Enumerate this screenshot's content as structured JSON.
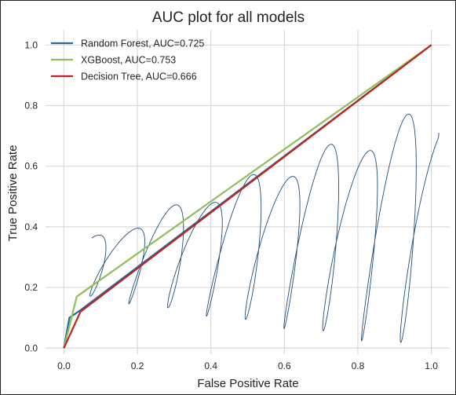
{
  "chart_data": {
    "type": "line",
    "title": "AUC plot for all models",
    "xlabel": "False Positive Rate",
    "ylabel": "True Positive Rate",
    "xlim": [
      -0.05,
      1.05
    ],
    "ylim": [
      -0.02,
      1.05
    ],
    "xticks": [
      0.0,
      0.2,
      0.4,
      0.6,
      0.8,
      1.0
    ],
    "yticks": [
      0.0,
      0.2,
      0.4,
      0.6,
      0.8,
      1.0
    ],
    "xtick_labels": [
      "0.0",
      "0.2",
      "0.4",
      "0.6",
      "0.8",
      "1.0"
    ],
    "ytick_labels": [
      "0.0",
      "0.2",
      "0.4",
      "0.6",
      "0.8",
      "1.0"
    ],
    "grid": true,
    "legend_position": "top-left",
    "series": [
      {
        "name": "Random Forest, AUC=0.725",
        "color": "#1f6aa5",
        "x": [
          0.0,
          0.015,
          0.045,
          1.0
        ],
        "y": [
          0.0,
          0.1,
          0.125,
          1.0
        ]
      },
      {
        "name": "XGBoost, AUC=0.753",
        "color": "#8fbf5a",
        "x": [
          0.0,
          0.035,
          1.0
        ],
        "y": [
          0.0,
          0.17,
          1.0
        ]
      },
      {
        "name": "Decision Tree, AUC=0.666",
        "color": "#c3231e",
        "x": [
          0.0,
          0.045,
          1.0
        ],
        "y": [
          0.0,
          0.12,
          1.0
        ]
      }
    ]
  },
  "scribble": {
    "color": "#1e4f7e"
  }
}
